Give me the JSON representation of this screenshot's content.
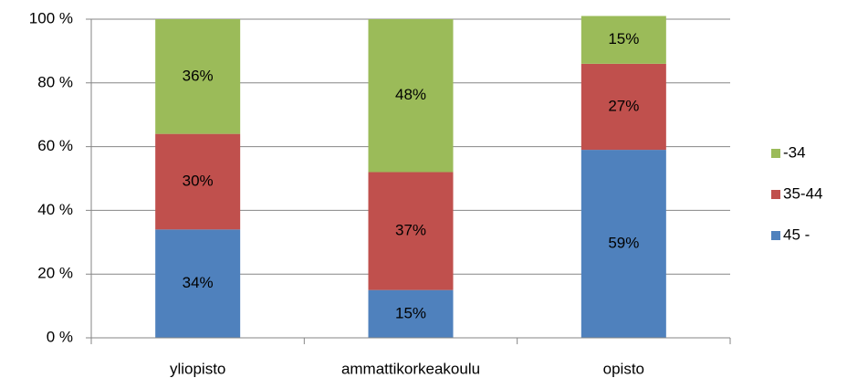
{
  "chart_data": {
    "type": "stacked_bar",
    "categories": [
      "yliopisto",
      "ammattikorkeakoulu",
      "opisto"
    ],
    "series": [
      {
        "name": "45 -",
        "color": "#4f81bd",
        "values": [
          34,
          15,
          59
        ],
        "value_labels": [
          "34%",
          "15%",
          "59%"
        ]
      },
      {
        "name": "35-44",
        "color": "#c0504d",
        "values": [
          30,
          37,
          27
        ],
        "value_labels": [
          "30%",
          "37%",
          "27%"
        ]
      },
      {
        "name": "-34",
        "color": "#9bbb59",
        "values": [
          36,
          48,
          15
        ],
        "value_labels": [
          "36%",
          "48%",
          "15%"
        ]
      }
    ],
    "ylim": [
      0,
      100
    ],
    "yticks": [
      {
        "value": 0,
        "label": "0 %"
      },
      {
        "value": 20,
        "label": "20 %"
      },
      {
        "value": 40,
        "label": "40 %"
      },
      {
        "value": 60,
        "label": "60 %"
      },
      {
        "value": 80,
        "label": "80 %"
      },
      {
        "value": 100,
        "label": "100 %"
      }
    ],
    "grid": true,
    "legend": "right"
  }
}
